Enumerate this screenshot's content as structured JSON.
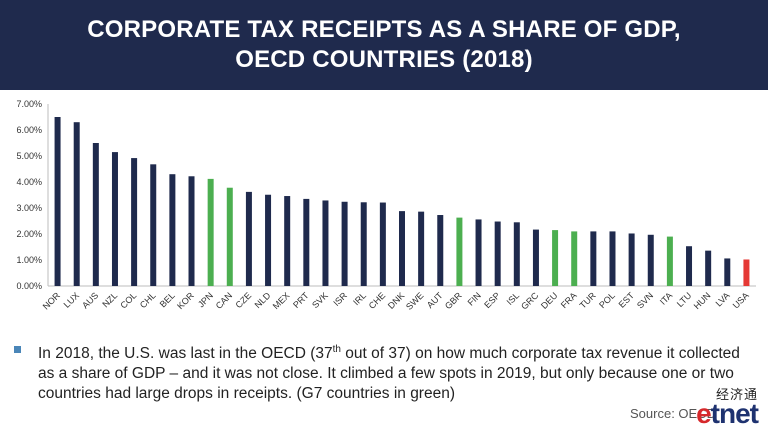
{
  "title_lines": [
    "CORPORATE TAX RECEIPTS AS A SHARE OF GDP,",
    "OECD COUNTRIES (2018)"
  ],
  "colors": {
    "banner": "#1f2a4d",
    "default_bar": "#1f2a4d",
    "g7_bar": "#4caf50",
    "usa_bar": "#e53935"
  },
  "chart_data": {
    "type": "bar",
    "title": "CORPORATE TAX RECEIPTS AS A SHARE OF GDP, OECD COUNTRIES (2018)",
    "xlabel": "",
    "ylabel": "",
    "ylim": [
      0,
      7
    ],
    "yticks": [
      "0.00%",
      "1.00%",
      "2.00%",
      "3.00%",
      "4.00%",
      "5.00%",
      "6.00%",
      "7.00%"
    ],
    "grid": false,
    "categories": [
      "NOR",
      "LUX",
      "AUS",
      "NZL",
      "COL",
      "CHL",
      "BEL",
      "KOR",
      "JPN",
      "CAN",
      "CZE",
      "NLD",
      "MEX",
      "PRT",
      "SVK",
      "ISR",
      "IRL",
      "CHE",
      "DNK",
      "SWE",
      "AUT",
      "GBR",
      "FIN",
      "ESP",
      "ISL",
      "GRC",
      "DEU",
      "FRA",
      "TUR",
      "POL",
      "EST",
      "SVN",
      "ITA",
      "LTU",
      "HUN",
      "LVA",
      "USA"
    ],
    "values": [
      6.5,
      6.3,
      5.5,
      5.15,
      4.92,
      4.68,
      4.3,
      4.22,
      4.12,
      3.78,
      3.62,
      3.51,
      3.46,
      3.35,
      3.29,
      3.24,
      3.22,
      3.21,
      2.88,
      2.86,
      2.73,
      2.63,
      2.56,
      2.48,
      2.45,
      2.17,
      2.15,
      2.1,
      2.1,
      2.1,
      2.02,
      1.97,
      1.9,
      1.53,
      1.36,
      1.06,
      1.02
    ],
    "bar_groups": [
      "other",
      "other",
      "other",
      "other",
      "other",
      "other",
      "other",
      "other",
      "g7",
      "g7",
      "other",
      "other",
      "other",
      "other",
      "other",
      "other",
      "other",
      "other",
      "other",
      "other",
      "other",
      "g7",
      "other",
      "other",
      "other",
      "other",
      "g7",
      "g7",
      "other",
      "other",
      "other",
      "other",
      "g7",
      "other",
      "other",
      "other",
      "usa"
    ]
  },
  "bullet": {
    "part1": "In 2018, the U.S. was last in the OECD (37",
    "sup": "th",
    "part2": " out of 37) on how much corporate tax revenue it collected as a share of GDP – and it was not close.  It climbed a few spots in 2019, but only because one or two countries had large drops in receipts. (G7 countries in green)"
  },
  "source": "Source: OECD",
  "logo": {
    "cn": "经济通",
    "en_e": "e",
    "en_rest": "tnet"
  }
}
